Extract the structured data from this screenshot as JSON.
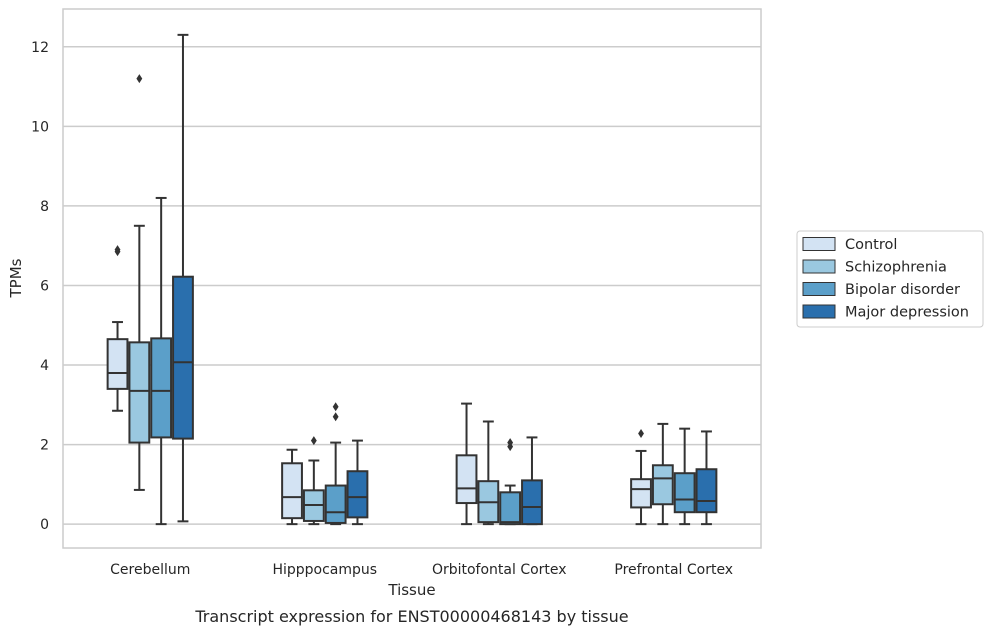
{
  "chart_data": {
    "type": "box",
    "title": "",
    "caption": "Transcript expression for ENST00000468143 by tissue",
    "xlabel": "Tissue",
    "ylabel": "TPMs",
    "ylim": [
      -0.6,
      12.95
    ],
    "yticks": [
      0,
      2,
      4,
      6,
      8,
      10,
      12
    ],
    "grid": "horizontal",
    "legend_position": "right",
    "categories": [
      "Cerebellum",
      "Hipppocampus",
      "Orbitofontal Cortex",
      "Prefrontal Cortex"
    ],
    "series": [
      {
        "name": "Control",
        "color": "#d3e3f3",
        "boxes": [
          {
            "whislo": 2.85,
            "q1": 3.4,
            "med": 3.8,
            "q3": 4.65,
            "whishi": 5.08,
            "fliers": [
              6.85,
              6.9
            ]
          },
          {
            "whislo": 0.0,
            "q1": 0.15,
            "med": 0.68,
            "q3": 1.53,
            "whishi": 1.87,
            "fliers": []
          },
          {
            "whislo": 0.0,
            "q1": 0.53,
            "med": 0.9,
            "q3": 1.73,
            "whishi": 3.03,
            "fliers": []
          },
          {
            "whislo": 0.0,
            "q1": 0.42,
            "med": 0.88,
            "q3": 1.13,
            "whishi": 1.84,
            "fliers": [
              2.28
            ]
          }
        ]
      },
      {
        "name": "Schizophrenia",
        "color": "#9ac8e0",
        "boxes": [
          {
            "whislo": 0.86,
            "q1": 2.05,
            "med": 3.35,
            "q3": 4.57,
            "whishi": 7.5,
            "fliers": [
              11.2
            ]
          },
          {
            "whislo": 0.0,
            "q1": 0.08,
            "med": 0.48,
            "q3": 0.85,
            "whishi": 1.6,
            "fliers": [
              2.1
            ]
          },
          {
            "whislo": 0.0,
            "q1": 0.05,
            "med": 0.55,
            "q3": 1.08,
            "whishi": 2.58,
            "fliers": []
          },
          {
            "whislo": 0.0,
            "q1": 0.5,
            "med": 1.15,
            "q3": 1.48,
            "whishi": 2.52,
            "fliers": []
          }
        ]
      },
      {
        "name": "Bipolar disorder",
        "color": "#5b9fc9",
        "boxes": [
          {
            "whislo": 0.0,
            "q1": 2.18,
            "med": 3.35,
            "q3": 4.67,
            "whishi": 8.2,
            "fliers": []
          },
          {
            "whislo": 0.0,
            "q1": 0.03,
            "med": 0.3,
            "q3": 0.97,
            "whishi": 2.05,
            "fliers": [
              2.7,
              2.95
            ]
          },
          {
            "whislo": 0.0,
            "q1": 0.0,
            "med": 0.05,
            "q3": 0.8,
            "whishi": 0.97,
            "fliers": [
              1.95,
              2.05
            ]
          },
          {
            "whislo": 0.0,
            "q1": 0.3,
            "med": 0.62,
            "q3": 1.28,
            "whishi": 2.4,
            "fliers": []
          }
        ]
      },
      {
        "name": "Major depression",
        "color": "#2a6fad",
        "boxes": [
          {
            "whislo": 0.07,
            "q1": 2.15,
            "med": 4.07,
            "q3": 6.22,
            "whishi": 12.3,
            "fliers": []
          },
          {
            "whislo": 0.0,
            "q1": 0.17,
            "med": 0.68,
            "q3": 1.33,
            "whishi": 2.1,
            "fliers": []
          },
          {
            "whislo": 0.0,
            "q1": 0.0,
            "med": 0.43,
            "q3": 1.1,
            "whishi": 2.18,
            "fliers": []
          },
          {
            "whislo": 0.0,
            "q1": 0.3,
            "med": 0.58,
            "q3": 1.38,
            "whishi": 2.33,
            "fliers": []
          }
        ]
      }
    ]
  }
}
